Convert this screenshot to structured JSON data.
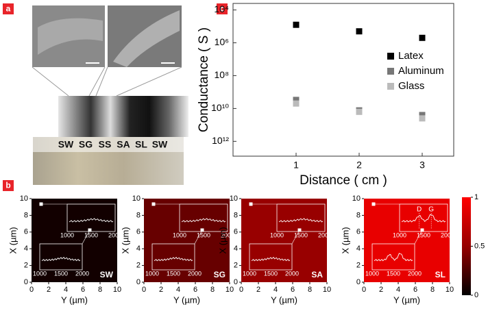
{
  "figure": {
    "panel_labels": [
      "a",
      "b",
      "c"
    ],
    "strip_labels": [
      "SW",
      "SG",
      "SS",
      "SA",
      "SL",
      "SW"
    ]
  },
  "chart_data": [
    {
      "type": "scatter",
      "xlabel": "Distance ( cm )",
      "ylabel": "Conductance ( S )",
      "x": [
        1,
        2,
        3
      ],
      "xlim": [
        0,
        3.5
      ],
      "xticks": [
        1,
        2,
        3
      ],
      "log_y": true,
      "y_inverted": true,
      "ylim": [
        4000,
        8000000000000
      ],
      "yticks": [
        {
          "value": 10000,
          "label": "10⁴"
        },
        {
          "value": 1000000,
          "label": "10⁶"
        },
        {
          "value": 100000000,
          "label": "10⁸"
        },
        {
          "value": 10000000000,
          "label": "10¹⁰"
        },
        {
          "value": 1000000000000,
          "label": "10¹²"
        }
      ],
      "legend": "right",
      "series": [
        {
          "name": "Latex",
          "color": "#000000",
          "values": [
            80000,
            200000,
            500000
          ]
        },
        {
          "name": "Aluminum",
          "color": "#777777",
          "values": [
            3000000000,
            13000000000,
            25000000000
          ]
        },
        {
          "name": "Glass",
          "color": "#bbbbbb",
          "values": [
            5000000000,
            16000000000,
            40000000000
          ]
        }
      ]
    },
    {
      "type": "heatmap",
      "label": "SW",
      "value": 0.03,
      "xlabel": "Y (µm)",
      "ylabel": "X (µm)",
      "xlim": [
        0,
        10
      ],
      "ylim": [
        0,
        10
      ],
      "xticks": [
        0,
        2,
        4,
        6,
        8,
        10
      ],
      "yticks": [
        0,
        2,
        4,
        6,
        8,
        10
      ],
      "inset_xticks": [
        1000,
        1500,
        2000
      ]
    },
    {
      "type": "heatmap",
      "label": "SG",
      "value": 0.3,
      "xlabel": "Y (µm)",
      "ylabel": "X (µm)",
      "xlim": [
        0,
        10
      ],
      "ylim": [
        0,
        10
      ],
      "xticks": [
        0,
        2,
        4,
        6,
        8,
        10
      ],
      "yticks": [
        0,
        2,
        4,
        6,
        8,
        10
      ],
      "inset_xticks": [
        1000,
        1500,
        2000
      ]
    },
    {
      "type": "heatmap",
      "label": "SA",
      "value": 0.5,
      "xlabel": "Y (µm)",
      "ylabel": "X (µm)",
      "xlim": [
        0,
        10
      ],
      "ylim": [
        0,
        10
      ],
      "xticks": [
        0,
        2,
        4,
        6,
        8,
        10
      ],
      "yticks": [
        0,
        2,
        4,
        6,
        8,
        10
      ],
      "inset_xticks": [
        1000,
        1500,
        2000
      ]
    },
    {
      "type": "heatmap",
      "label": "SL",
      "value": 0.88,
      "xlabel": "Y (µm)",
      "ylabel": "X (µm)",
      "xlim": [
        0,
        10
      ],
      "ylim": [
        0,
        10
      ],
      "xticks": [
        0,
        2,
        4,
        6,
        8,
        10
      ],
      "yticks": [
        0,
        2,
        4,
        6,
        8,
        10
      ],
      "inset_xticks": [
        1000,
        1500,
        2000
      ],
      "peak_labels": [
        "D",
        "G"
      ]
    },
    {
      "type": "colorbar",
      "clim": [
        0,
        1
      ],
      "ticks": [
        0,
        0.5,
        1
      ]
    }
  ]
}
